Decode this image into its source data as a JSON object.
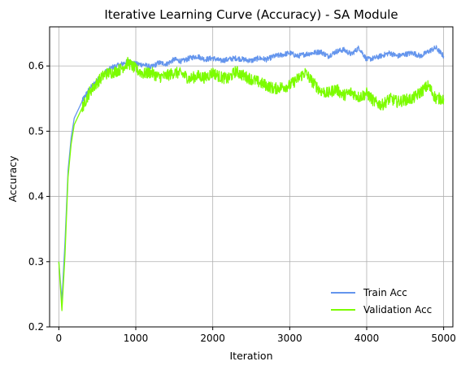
{
  "chart_data": {
    "type": "line",
    "title": "Iterative Learning Curve (Accuracy) - SA Module",
    "xlabel": "Iteration",
    "ylabel": "Accuracy",
    "xlim": [
      -120,
      5120
    ],
    "ylim": [
      0.2,
      0.66
    ],
    "xticks": [
      0,
      1000,
      2000,
      3000,
      4000,
      5000
    ],
    "xtick_labels": [
      "0",
      "1000",
      "2000",
      "3000",
      "4000",
      "5000"
    ],
    "yticks": [
      0.2,
      0.3,
      0.4,
      0.5,
      0.6
    ],
    "ytick_labels": [
      "0.2",
      "0.3",
      "0.4",
      "0.5",
      "0.6"
    ],
    "grid": true,
    "legend_position": "lower-right",
    "series": [
      {
        "name": "Train Acc",
        "color": "#6495ED",
        "noise": 0.004,
        "x": [
          0,
          40,
          80,
          120,
          160,
          200,
          260,
          320,
          400,
          500,
          600,
          700,
          800,
          900,
          1000,
          1100,
          1200,
          1300,
          1400,
          1500,
          1600,
          1700,
          1800,
          1900,
          2000,
          2100,
          2200,
          2300,
          2400,
          2500,
          2600,
          2700,
          2800,
          2900,
          3000,
          3100,
          3200,
          3300,
          3400,
          3500,
          3600,
          3700,
          3800,
          3900,
          4000,
          4100,
          4200,
          4300,
          4400,
          4500,
          4600,
          4700,
          4800,
          4900,
          5000
        ],
        "values": [
          0.3,
          0.24,
          0.33,
          0.44,
          0.49,
          0.52,
          0.535,
          0.55,
          0.565,
          0.578,
          0.59,
          0.598,
          0.602,
          0.607,
          0.603,
          0.602,
          0.598,
          0.605,
          0.603,
          0.61,
          0.607,
          0.612,
          0.615,
          0.61,
          0.612,
          0.608,
          0.61,
          0.612,
          0.61,
          0.608,
          0.612,
          0.61,
          0.615,
          0.617,
          0.62,
          0.615,
          0.618,
          0.62,
          0.622,
          0.615,
          0.622,
          0.625,
          0.618,
          0.628,
          0.61,
          0.612,
          0.616,
          0.62,
          0.615,
          0.618,
          0.62,
          0.615,
          0.622,
          0.628,
          0.615
        ]
      },
      {
        "name": "Validation Acc",
        "color": "#7CFC00",
        "noise": 0.009,
        "x": [
          0,
          40,
          80,
          120,
          160,
          200,
          260,
          320,
          400,
          500,
          600,
          700,
          800,
          900,
          1000,
          1100,
          1200,
          1300,
          1400,
          1500,
          1600,
          1700,
          1800,
          1900,
          2000,
          2100,
          2200,
          2300,
          2400,
          2500,
          2600,
          2700,
          2800,
          2900,
          3000,
          3100,
          3200,
          3300,
          3400,
          3500,
          3600,
          3700,
          3800,
          3900,
          4000,
          4100,
          4200,
          4300,
          4400,
          4500,
          4600,
          4700,
          4800,
          4900,
          5000
        ],
        "values": [
          0.3,
          0.225,
          0.31,
          0.43,
          0.48,
          0.51,
          0.525,
          0.54,
          0.56,
          0.575,
          0.588,
          0.59,
          0.595,
          0.605,
          0.595,
          0.588,
          0.59,
          0.583,
          0.585,
          0.59,
          0.588,
          0.58,
          0.585,
          0.582,
          0.59,
          0.583,
          0.58,
          0.592,
          0.585,
          0.58,
          0.575,
          0.57,
          0.565,
          0.568,
          0.57,
          0.58,
          0.59,
          0.575,
          0.562,
          0.558,
          0.565,
          0.555,
          0.56,
          0.552,
          0.558,
          0.545,
          0.54,
          0.55,
          0.545,
          0.548,
          0.55,
          0.56,
          0.57,
          0.55,
          0.55
        ]
      }
    ]
  }
}
